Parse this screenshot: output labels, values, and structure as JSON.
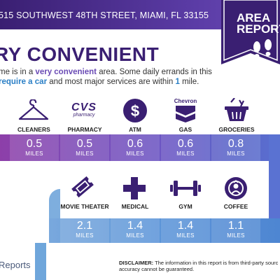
{
  "header": {
    "address": "515 SOUTHWEST 48TH STREET, MIAMI, FL 33155",
    "badge_line1": "AREA",
    "badge_line2": "REPORT"
  },
  "summary": {
    "headline": "RY CONVENIENT",
    "line1_pre": "me is in a ",
    "line1_hl": "very convenient",
    "line1_post": " area. Some daily errands in this",
    "line2_hl": "require a car",
    "line2_mid": " and most major services are within ",
    "line2_num": "1",
    "line2_post": " mile."
  },
  "services_row1": [
    {
      "label": "CLEANERS",
      "value": "0.5",
      "unit": "MILES",
      "icon": "hanger-icon"
    },
    {
      "label": "PHARMACY",
      "value": "0.5",
      "unit": "MILES",
      "icon": "cvs-pharmacy-logo"
    },
    {
      "label": "ATM",
      "value": "0.6",
      "unit": "MILES",
      "icon": "dollar-icon"
    },
    {
      "label": "GAS",
      "value": "0.6",
      "unit": "MILES",
      "icon": "chevron-logo"
    },
    {
      "label": "GROCERIES",
      "value": "0.8",
      "unit": "MILES",
      "icon": "grocery-basket-icon"
    }
  ],
  "services_row2": [
    {
      "label": "MOVIE THEATER",
      "value": "2.1",
      "unit": "MILES",
      "icon": "ticket-icon"
    },
    {
      "label": "MEDICAL",
      "value": "1.4",
      "unit": "MILES",
      "icon": "medical-cross-icon"
    },
    {
      "label": "GYM",
      "value": "1.4",
      "unit": "MILES",
      "icon": "dumbbell-icon"
    },
    {
      "label": "COFFEE",
      "value": "1.1",
      "unit": "MILES",
      "icon": "starbucks-logo"
    }
  ],
  "logos": {
    "cvs_text": "CVS",
    "cvs_sub": "pharmacy",
    "chevron_text": "Chevron"
  },
  "footer": {
    "brand": "Reports",
    "disclaimer_title": "DISCLAIMER:",
    "disclaimer_line1": " The information in this report is from third-party sourc",
    "disclaimer_line2": "accuracy cannot be guaranteed."
  },
  "colors": {
    "dark_purple": "#3a1f72",
    "accent_purple": "#6a4bb5",
    "blue": "#2a7fc6"
  }
}
